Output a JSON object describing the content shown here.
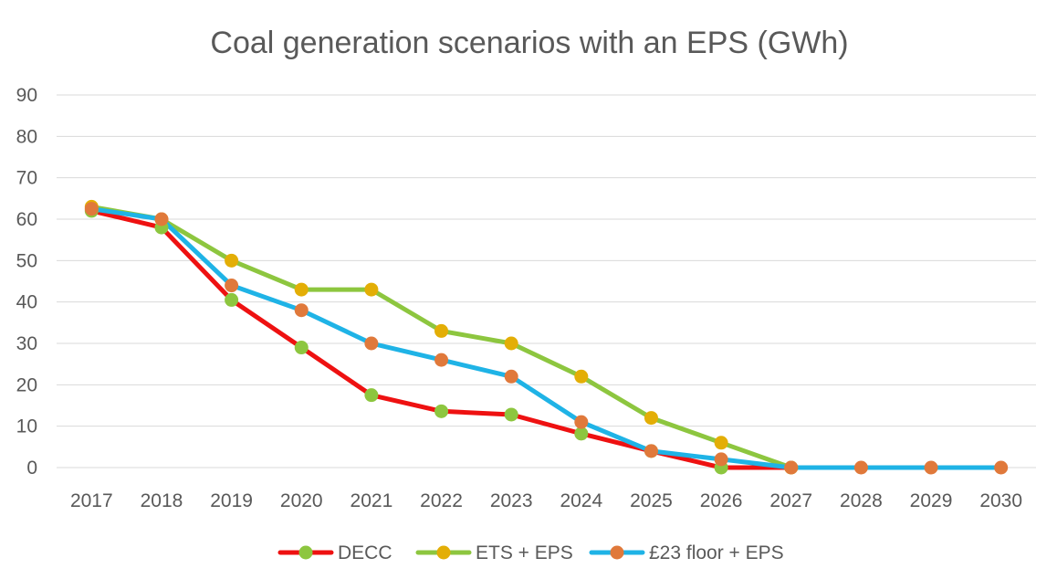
{
  "chart_data": {
    "type": "line",
    "title": "Coal generation scenarios with an EPS (GWh)",
    "xlabel": "",
    "ylabel": "",
    "x": [
      "2017",
      "2018",
      "2019",
      "2020",
      "2021",
      "2022",
      "2023",
      "2024",
      "2025",
      "2026",
      "2027",
      "2028",
      "2029",
      "2030"
    ],
    "ylim": [
      0,
      90
    ],
    "yticks": [
      "0",
      "10",
      "20",
      "30",
      "40",
      "50",
      "60",
      "70",
      "80",
      "90"
    ],
    "grid": true,
    "legend_position": "bottom",
    "series": [
      {
        "name": "DECC",
        "line_color": "#ee1111",
        "marker_color": "#8dc63f",
        "values": [
          62,
          58,
          40.5,
          29,
          17.5,
          13.6,
          12.8,
          8.2,
          4,
          0,
          0,
          null,
          null,
          null
        ]
      },
      {
        "name": "ETS + EPS",
        "line_color": "#8dc63f",
        "marker_color": "#e3ae06",
        "values": [
          63,
          60,
          50,
          43,
          43,
          33,
          30,
          22,
          12,
          6,
          0,
          null,
          null,
          null
        ]
      },
      {
        "name": "£23 floor + EPS",
        "line_color": "#1fb3e6",
        "marker_color": "#e0793b",
        "values": [
          62.5,
          60,
          44,
          38,
          30,
          26,
          22,
          11,
          4,
          2,
          0,
          0,
          0,
          0
        ]
      }
    ]
  }
}
